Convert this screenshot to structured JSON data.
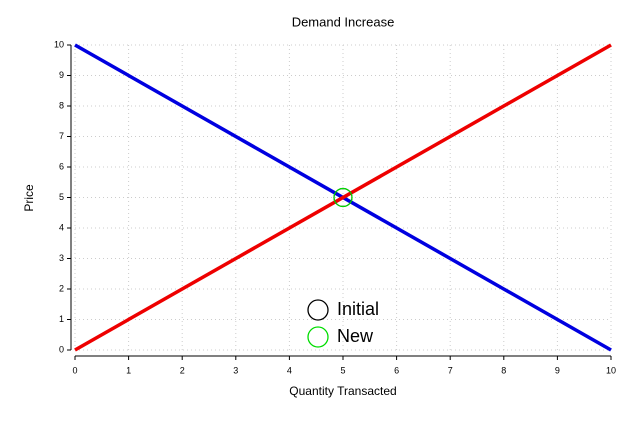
{
  "chart_data": {
    "type": "line",
    "title": "Demand Increase",
    "x_label": "Quantity Transacted",
    "y_label": "Price",
    "x": [
      0,
      10
    ],
    "series": [
      {
        "color": "#0000e0",
        "values": [
          10,
          0
        ]
      },
      {
        "color": "#ee0000",
        "values": [
          0,
          10
        ]
      }
    ],
    "points": [
      {
        "name": "Initial",
        "color": "#000000",
        "x": 5,
        "y": 5
      },
      {
        "name": "New",
        "color": "#00dd00",
        "x": 5,
        "y": 5
      }
    ],
    "xlim": [
      0,
      10
    ],
    "ylim": [
      0,
      10
    ],
    "xticks": [
      0,
      1,
      2,
      3,
      4,
      5,
      6,
      7,
      8,
      9,
      10
    ],
    "yticks": [
      0,
      1,
      2,
      3,
      4,
      5,
      6,
      7,
      8,
      9,
      10
    ],
    "grid": true
  }
}
